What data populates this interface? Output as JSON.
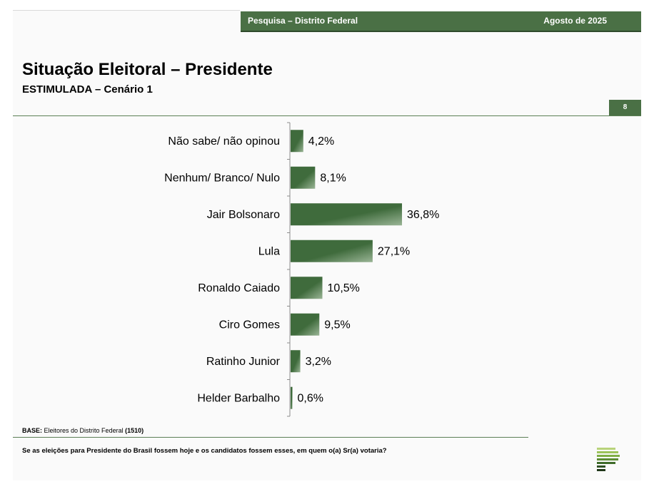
{
  "header": {
    "left_text": "Pesquisa – Distrito Federal",
    "right_text": "Agosto de 2025",
    "color": "#4a7045"
  },
  "title": "Situação Eleitoral – Presidente",
  "subtitle": "ESTIMULADA – Cenário 1",
  "page_number": "8",
  "footer": {
    "base_label": "BASE:",
    "base_text": "Eleitores do Distrito Federal",
    "base_count": "(1510)",
    "question": "Se as eleições para Presidente do Brasil fossem hoje e os candidatos fossem esses, em quem o(a) Sr(a) votaria?"
  },
  "logo_icon": "pollster-logo-icon",
  "chart_data": {
    "type": "bar",
    "orientation": "horizontal",
    "categories": [
      "Não sabe/ não opinou",
      "Nenhum/ Branco/ Nulo",
      "Jair Bolsonaro",
      "Lula",
      "Ronaldo Caiado",
      "Ciro Gomes",
      "Ratinho Junior",
      "Helder Barbalho"
    ],
    "values": [
      4.2,
      8.1,
      36.8,
      27.1,
      10.5,
      9.5,
      3.2,
      0.6
    ],
    "value_labels": [
      "4,2%",
      "8,1%",
      "36,8%",
      "27,1%",
      "10,5%",
      "9,5%",
      "3,2%",
      "0,6%"
    ],
    "xlim": [
      0,
      100
    ],
    "grid": false,
    "bar_color_dark": "#3f6b3c",
    "bar_color_light": "#9ab596"
  }
}
